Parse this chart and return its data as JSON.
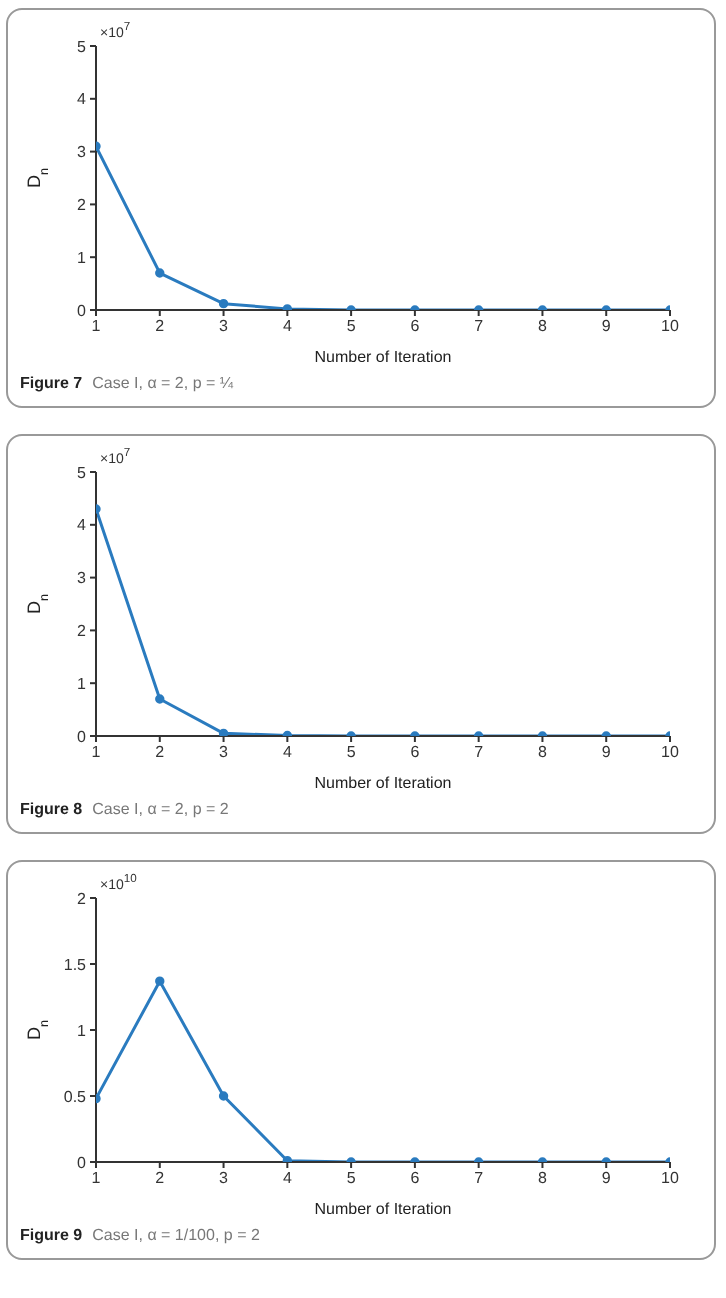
{
  "chart_data": [
    {
      "type": "line",
      "title": "Figure 7",
      "subtitle": "Case I, α = 2, p = ¼",
      "xlabel": "Number of Iteration",
      "ylabel": "D$_{n}$",
      "annotations": [
        "×10$^{7}$"
      ],
      "x": [
        1,
        2,
        3,
        4,
        5,
        6,
        7,
        8,
        9,
        10
      ],
      "values": [
        3.1,
        0.7,
        0.12,
        0.02,
        0,
        0,
        0,
        0,
        0,
        0
      ],
      "color": "#2a7bbf",
      "xlim": [
        1,
        10
      ],
      "xticks": [
        1,
        2,
        3,
        4,
        5,
        6,
        7,
        8,
        9,
        10
      ],
      "ylim": [
        0,
        5
      ],
      "yticks": [
        0,
        1,
        2,
        3,
        4,
        5
      ],
      "marker": "circle",
      "line_style": "solid"
    },
    {
      "type": "line",
      "title": "Figure 8",
      "subtitle": "Case I, α = 2, p = 2",
      "xlabel": "Number of Iteration",
      "ylabel": "D$_{n}$",
      "annotations": [
        "×10$^{7}$"
      ],
      "x": [
        1,
        2,
        3,
        4,
        5,
        6,
        7,
        8,
        9,
        10
      ],
      "values": [
        4.3,
        0.7,
        0.05,
        0.01,
        0,
        0,
        0,
        0,
        0,
        0
      ],
      "color": "#2a7bbf",
      "xlim": [
        1,
        10
      ],
      "xticks": [
        1,
        2,
        3,
        4,
        5,
        6,
        7,
        8,
        9,
        10
      ],
      "ylim": [
        0,
        5
      ],
      "yticks": [
        0,
        1,
        2,
        3,
        4,
        5
      ],
      "marker": "circle",
      "line_style": "solid"
    },
    {
      "type": "line",
      "title": "Figure 9",
      "subtitle": "Case I, α = 1/100, p = 2",
      "xlabel": "Number of Iteration",
      "ylabel": "D$_{n}$",
      "annotations": [
        "×10$^{10}$"
      ],
      "x": [
        1,
        2,
        3,
        4,
        5,
        6,
        7,
        8,
        9,
        10
      ],
      "values": [
        0.48,
        1.37,
        0.5,
        0.01,
        0,
        0,
        0,
        0,
        0,
        0
      ],
      "color": "#2a7bbf",
      "xlim": [
        1,
        10
      ],
      "xticks": [
        1,
        2,
        3,
        4,
        5,
        6,
        7,
        8,
        9,
        10
      ],
      "ylim": [
        0,
        2
      ],
      "yticks": [
        0,
        0.5,
        1,
        1.5,
        2
      ],
      "marker": "circle",
      "line_style": "solid"
    }
  ]
}
